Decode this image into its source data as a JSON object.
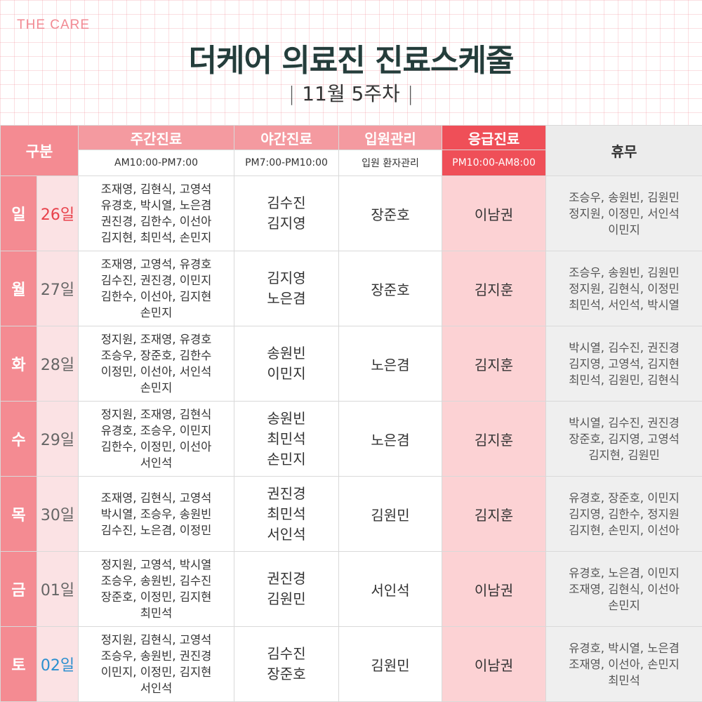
{
  "brand": "THE CARE",
  "title": "더케어 의료진 진료스케줄",
  "week": "11월 5주차",
  "headers": {
    "category": "구분",
    "day": "주간진료",
    "night": "야간진료",
    "inpatient": "입원관리",
    "emergency": "응급진료",
    "off": "휴무",
    "day_time": "AM10:00-PM7:00",
    "night_time": "PM7:00-PM10:00",
    "inpatient_sub": "입원 환자관리",
    "emergency_time": "PM10:00-AM8:00"
  },
  "colors": {
    "header_pink": "#f49aa0",
    "emergency_red": "#ef4f58",
    "emergency_cell": "#fcd2d4",
    "off_gray": "#efefef",
    "sunday": "#e8414b",
    "saturday": "#2b8fcf",
    "title": "#243d3b"
  },
  "rows": [
    {
      "dow": "일",
      "date": "26일",
      "day": "조재영, 김현식, 고영석\n유경호, 박시열, 노은겸\n권진경, 김한수, 이선아\n김지현, 최민석, 손민지",
      "night": "김수진\n김지영",
      "inpatient": "장준호",
      "emergency": "이남권",
      "off": "조승우, 송원빈, 김원민\n정지원, 이정민, 서인석\n이민지"
    },
    {
      "dow": "월",
      "date": "27일",
      "day": "조재영, 고영석, 유경호\n김수진, 권진경, 이민지\n김한수, 이선아, 김지현\n손민지",
      "night": "김지영\n노은겸",
      "inpatient": "장준호",
      "emergency": "김지훈",
      "off": "조승우, 송원빈, 김원민\n정지원, 김현식, 이정민\n최민석, 서인석, 박시열"
    },
    {
      "dow": "화",
      "date": "28일",
      "day": "정지원, 조재영, 유경호\n조승우, 장준호, 김한수\n이정민, 이선아, 서인석\n손민지",
      "night": "송원빈\n이민지",
      "inpatient": "노은겸",
      "emergency": "김지훈",
      "off": "박시열, 김수진, 권진경\n김지영, 고영석, 김지현\n최민석, 김원민, 김현식"
    },
    {
      "dow": "수",
      "date": "29일",
      "day": "정지원, 조재영, 김현식\n유경호, 조승우, 이민지\n김한수, 이정민, 이선아\n서인석",
      "night": "송원빈\n최민석\n손민지",
      "inpatient": "노은겸",
      "emergency": "김지훈",
      "off": "박시열, 김수진, 권진경\n장준호, 김지영, 고영석\n김지현, 김원민"
    },
    {
      "dow": "목",
      "date": "30일",
      "day": "조재영, 김현식, 고영석\n박시열, 조승우, 송원빈\n김수진, 노은겸, 이정민",
      "night": "권진경\n최민석\n서인석",
      "inpatient": "김원민",
      "emergency": "김지훈",
      "off": "유경호, 장준호, 이민지\n김지영, 김한수, 정지원\n김지현, 손민지, 이선아"
    },
    {
      "dow": "금",
      "date": "01일",
      "day": "정지원, 고영석, 박시열\n조승우, 송원빈, 김수진\n장준호, 이정민, 김지현\n최민석",
      "night": "권진경\n김원민",
      "inpatient": "서인석",
      "emergency": "이남권",
      "off": "유경호, 노은겸, 이민지\n조재영, 김현식, 이선아\n손민지"
    },
    {
      "dow": "토",
      "date": "02일",
      "day": "정지원, 김현식, 고영석\n조승우, 송원빈, 권진경\n이민지, 이정민, 김지현\n서인석",
      "night": "김수진\n장준호",
      "inpatient": "김원민",
      "emergency": "이남권",
      "off": "유경호, 박시열, 노은겸\n조재영, 이선아, 손민지\n최민석"
    }
  ]
}
